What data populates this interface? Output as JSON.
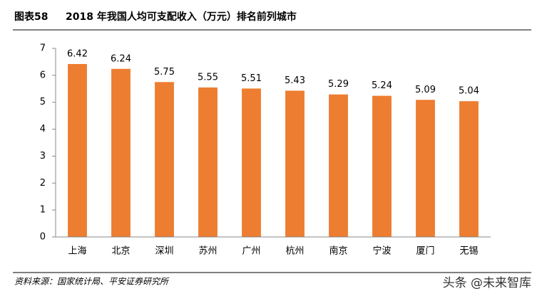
{
  "chart_data": {
    "type": "bar",
    "figure_label": "图表58",
    "title": "2018 年我国人均可支配收入（万元）排名前列城市",
    "categories": [
      "上海",
      "北京",
      "深圳",
      "苏州",
      "广州",
      "杭州",
      "南京",
      "宁波",
      "厦门",
      "无锡"
    ],
    "values": [
      6.42,
      6.24,
      5.75,
      5.55,
      5.51,
      5.43,
      5.29,
      5.24,
      5.09,
      5.04
    ],
    "color": "#ed7d31",
    "ylim": [
      0,
      7
    ],
    "yticks": [
      0,
      1,
      2,
      3,
      4,
      5,
      6,
      7
    ],
    "source": "资料来源：国家统计局、平安证券研究所",
    "watermark": "头条 @未来智库"
  }
}
